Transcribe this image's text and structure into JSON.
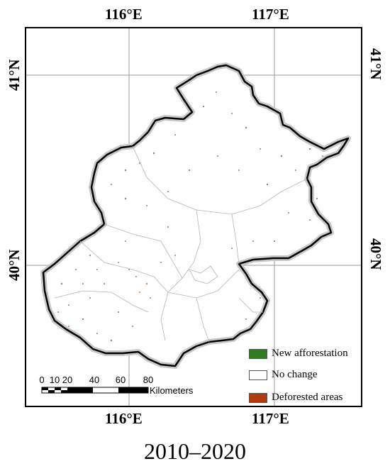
{
  "map": {
    "top_longitudes": [
      "116°E",
      "117°E"
    ],
    "bottom_longitudes": [
      "116°E",
      "117°E"
    ],
    "left_latitudes": [
      "41°N",
      "40°N"
    ],
    "right_latitudes": [
      "41°N",
      "40°N"
    ]
  },
  "legend": {
    "items": [
      {
        "label": "New afforestation",
        "color": "#2e7d1f"
      },
      {
        "label": "No change",
        "color": "#ffffff"
      },
      {
        "label": "Deforested areas",
        "color": "#b23a0f"
      }
    ]
  },
  "scale_bar": {
    "ticks": [
      "0",
      "10",
      "20",
      "40",
      "60",
      "80"
    ],
    "unit": "Kilometers"
  },
  "caption": "2010–2020"
}
